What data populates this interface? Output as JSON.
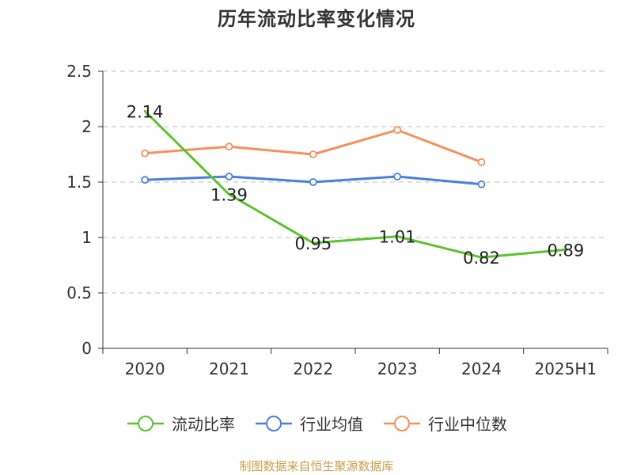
{
  "chart_data": {
    "type": "line",
    "title": "历年流动比率变化情况",
    "categories": [
      "2020",
      "2021",
      "2022",
      "2023",
      "2024",
      "2025H1"
    ],
    "ylim": [
      0,
      2.5
    ],
    "yticks": [
      "0",
      "0.5",
      "1",
      "1.5",
      "2",
      "2.5"
    ],
    "grid": true,
    "legend_position": "bottom",
    "series": [
      {
        "name": "流动比率",
        "color": "#5cc22d",
        "values": [
          2.14,
          1.39,
          0.95,
          1.01,
          0.82,
          0.89
        ],
        "labels": [
          "2.14",
          "1.39",
          "0.95",
          "1.01",
          "0.82",
          "0.89"
        ],
        "show_markers": false
      },
      {
        "name": "行业均值",
        "color": "#4a7fdc",
        "values": [
          1.52,
          1.55,
          1.5,
          1.55,
          1.48,
          null
        ],
        "show_markers": true
      },
      {
        "name": "行业中位数",
        "color": "#f5905a",
        "values": [
          1.76,
          1.82,
          1.75,
          1.97,
          1.68,
          null
        ],
        "show_markers": true
      }
    ]
  },
  "source_note": "制图数据来自恒生聚源数据库"
}
